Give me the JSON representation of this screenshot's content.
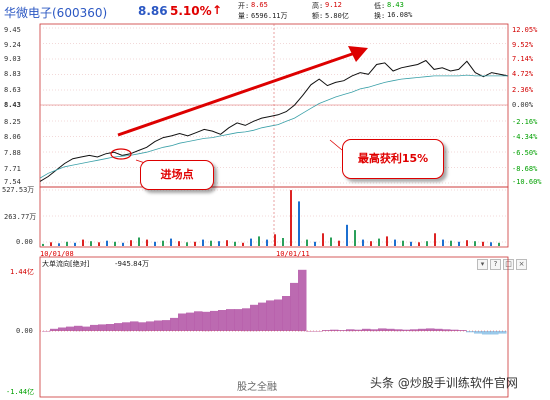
{
  "header": {
    "stock_name": "华微电子(600360)",
    "price": "8.86",
    "change_pct": "5.10%",
    "arrow": "↑",
    "quote": {
      "open_label": "开:",
      "open": "8.65",
      "high_label": "高:",
      "high": "9.12",
      "low_label": "低:",
      "low": "8.43",
      "vol_label": "量:",
      "vol": "6596.11万",
      "amount_label": "额:",
      "amount": "5.80亿",
      "turnover_label": "换:",
      "turnover": "16.08%"
    }
  },
  "price_axis": {
    "left_ticks": [
      "9.45",
      "9.24",
      "9.03",
      "8.83",
      "8.63",
      "8.43",
      "8.25",
      "8.06",
      "7.88",
      "7.71",
      "7.54"
    ],
    "right_ticks": [
      "12.05%",
      "9.52%",
      "7.14%",
      "4.72%",
      "2.36%",
      "0.00%",
      "-2.16%",
      "-4.34%",
      "-6.50%",
      "-8.68%",
      "-10.60%"
    ]
  },
  "volume_axis": {
    "ticks": [
      "527.53万",
      "263.77万",
      "0.00"
    ]
  },
  "dates": {
    "d1": "10/01/08",
    "d2": "10/01/11"
  },
  "flow_panel": {
    "label": "大单流向[绝对]",
    "value": "-945.84万",
    "ticks": [
      "1.44亿",
      "0.00",
      "-1.44亿"
    ]
  },
  "annotations": {
    "entry": "进场点",
    "profit": "最高获利15%"
  },
  "watermark": {
    "weibo": "股之全融",
    "credit": "头条 @炒股手训练软件官网"
  },
  "chart_data": [
    {
      "type": "line",
      "title": "",
      "ylim": [
        7.54,
        9.45
      ],
      "series": [
        {
          "values": [
            7.56,
            7.62,
            7.7,
            7.78,
            7.84,
            7.86,
            7.88,
            7.86,
            7.9,
            7.92,
            7.88,
            7.9,
            7.94,
            7.98,
            8.05,
            8.1,
            8.12,
            8.15,
            8.12,
            8.16,
            8.2,
            8.18,
            8.14,
            8.22,
            8.28,
            8.25,
            8.3,
            8.34,
            8.36,
            8.38,
            8.42,
            8.5,
            8.62,
            8.75,
            8.82,
            8.74,
            8.78,
            8.8,
            8.86,
            8.9,
            8.88,
            9.0,
            9.02,
            8.92,
            8.96,
            8.98,
            9.0,
            9.05,
            8.94,
            8.96,
            8.92,
            8.94,
            9.04,
            8.9,
            8.85,
            8.9,
            8.88,
            8.86
          ]
        },
        {
          "values": [
            7.6,
            7.66,
            7.7,
            7.74,
            7.76,
            7.78,
            7.8,
            7.82,
            7.84,
            7.86,
            7.87,
            7.88,
            7.9,
            7.92,
            7.95,
            7.98,
            8.0,
            8.03,
            8.05,
            8.07,
            8.09,
            8.1,
            8.12,
            8.14,
            8.16,
            8.17,
            8.19,
            8.22,
            8.24,
            8.26,
            8.3,
            8.34,
            8.4,
            8.46,
            8.52,
            8.56,
            8.6,
            8.63,
            8.66,
            8.7,
            8.72,
            8.75,
            8.78,
            8.8,
            8.82,
            8.83,
            8.84,
            8.85,
            8.86,
            8.86,
            8.86,
            8.86,
            8.87,
            8.86,
            8.86,
            8.86,
            8.86,
            8.86
          ]
        }
      ]
    },
    {
      "type": "bar",
      "title": "",
      "ylim": [
        0,
        527.53
      ],
      "values": [
        20,
        35,
        25,
        40,
        30,
        60,
        45,
        35,
        50,
        40,
        30,
        55,
        80,
        60,
        40,
        50,
        70,
        45,
        35,
        40,
        60,
        50,
        45,
        55,
        40,
        30,
        70,
        90,
        60,
        110,
        75,
        527,
        420,
        60,
        40,
        120,
        80,
        50,
        200,
        150,
        60,
        45,
        70,
        90,
        60,
        50,
        40,
        35,
        45,
        120,
        60,
        50,
        40,
        55,
        45,
        40,
        35,
        30
      ]
    },
    {
      "type": "area",
      "title": "",
      "ylim": [
        -1.44,
        1.44
      ],
      "values": [
        0,
        0.05,
        0.08,
        0.1,
        0.12,
        0.1,
        0.14,
        0.15,
        0.16,
        0.18,
        0.2,
        0.22,
        0.2,
        0.22,
        0.24,
        0.25,
        0.3,
        0.4,
        0.42,
        0.45,
        0.44,
        0.46,
        0.48,
        0.5,
        0.5,
        0.52,
        0.6,
        0.65,
        0.7,
        0.72,
        0.8,
        1.1,
        1.4,
        0,
        0,
        0.02,
        0.03,
        0.02,
        0.04,
        0.03,
        0.05,
        0.04,
        0.06,
        0.05,
        0.04,
        0.03,
        0.04,
        0.05,
        0.06,
        0.05,
        0.04,
        0.03,
        0.02,
        -0.03,
        -0.06,
        -0.08,
        -0.08,
        -0.06
      ]
    }
  ]
}
